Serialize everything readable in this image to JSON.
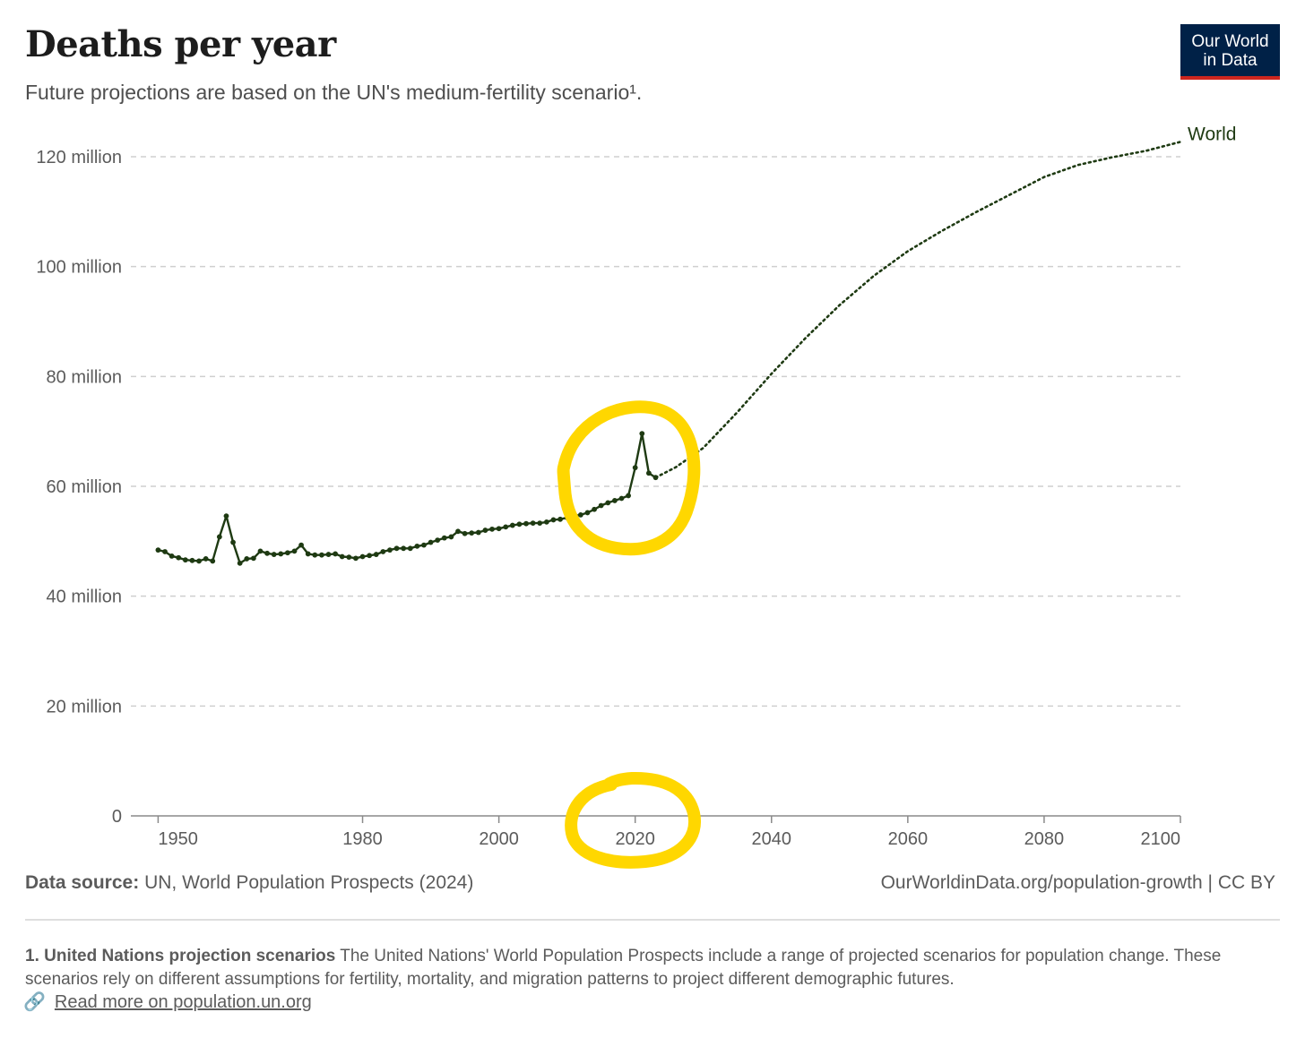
{
  "header": {
    "title": "Deaths per year",
    "subtitle": "Future projections are based on the UN's medium-fertility scenario¹.",
    "logo_line1": "Our World",
    "logo_line2": "in Data"
  },
  "chart_data": {
    "type": "line",
    "title": "Deaths per year",
    "xlabel": "",
    "ylabel": "",
    "xlim": [
      1946,
      2100
    ],
    "ylim": [
      0,
      120000000
    ],
    "x_ticks": [
      1950,
      1980,
      2000,
      2020,
      2040,
      2060,
      2080,
      2100
    ],
    "y_ticks": [
      0,
      20000000,
      40000000,
      60000000,
      80000000,
      100000000,
      120000000
    ],
    "y_tick_labels": [
      "0",
      "20 million",
      "40 million",
      "60 million",
      "80 million",
      "100 million",
      "120 million"
    ],
    "grid": "horizontal dashed",
    "series": [
      {
        "name": "World",
        "style": "solid-with-markers",
        "x": [
          1950,
          1951,
          1952,
          1953,
          1954,
          1955,
          1956,
          1957,
          1958,
          1959,
          1960,
          1961,
          1962,
          1963,
          1964,
          1965,
          1966,
          1967,
          1968,
          1969,
          1970,
          1971,
          1972,
          1973,
          1974,
          1975,
          1976,
          1977,
          1978,
          1979,
          1980,
          1981,
          1982,
          1983,
          1984,
          1985,
          1986,
          1987,
          1988,
          1989,
          1990,
          1991,
          1992,
          1993,
          1994,
          1995,
          1996,
          1997,
          1998,
          1999,
          2000,
          2001,
          2002,
          2003,
          2004,
          2005,
          2006,
          2007,
          2008,
          2009,
          2010,
          2011,
          2012,
          2013,
          2014,
          2015,
          2016,
          2017,
          2018,
          2019,
          2020,
          2021,
          2022,
          2023
        ],
        "values": [
          48.4,
          48.1,
          47.3,
          47.0,
          46.6,
          46.5,
          46.4,
          46.8,
          46.4,
          50.8,
          54.6,
          49.8,
          46.0,
          46.8,
          46.9,
          48.2,
          47.8,
          47.6,
          47.7,
          47.9,
          48.2,
          49.3,
          47.7,
          47.5,
          47.5,
          47.6,
          47.7,
          47.2,
          47.1,
          46.9,
          47.2,
          47.4,
          47.6,
          48.1,
          48.4,
          48.7,
          48.7,
          48.7,
          49.1,
          49.3,
          49.8,
          50.2,
          50.6,
          50.8,
          51.8,
          51.4,
          51.5,
          51.6,
          52.0,
          52.2,
          52.3,
          52.6,
          52.9,
          53.1,
          53.2,
          53.3,
          53.3,
          53.5,
          53.9,
          54.0,
          54.3,
          54.6,
          54.8,
          55.2,
          55.8,
          56.5,
          57.0,
          57.4,
          57.8,
          58.3,
          63.4,
          69.6,
          62.4,
          61.6
        ]
      },
      {
        "name": "World",
        "style": "dotted-projection",
        "x": [
          2023,
          2026,
          2030,
          2035,
          2040,
          2045,
          2050,
          2055,
          2060,
          2065,
          2070,
          2075,
          2080,
          2085,
          2090,
          2095,
          2100
        ],
        "values": [
          61.6,
          63.5,
          67.0,
          73.5,
          80.5,
          87.0,
          93.0,
          98.3,
          102.8,
          106.5,
          109.9,
          113.1,
          116.3,
          118.5,
          119.9,
          121.1,
          122.7
        ]
      }
    ],
    "values_unit": "million deaths",
    "legend": "inline label at end of line",
    "annotations": [
      "hand-drawn yellow circle around 2019-2023 peak",
      "hand-drawn yellow circle around 2020 axis label"
    ]
  },
  "colors": {
    "series": "#1e3a12",
    "highlight": "#ffd700",
    "logo_bg": "#002147",
    "logo_accent": "#ce261e",
    "grid": "#cfcfcf"
  },
  "footer": {
    "source_label": "Data source:",
    "source_text": "UN, World Population Prospects (2024)",
    "credit": "OurWorldinData.org/population-growth | CC BY"
  },
  "footnote": {
    "heading": "1. United Nations projection scenarios",
    "body": "The United Nations' World Population Prospects include a range of projected scenarios for population change. These scenarios rely on different assumptions for fertility, mortality, and migration patterns to project different demographic futures.",
    "link_icon": "link-icon",
    "link_text": "Read more on population.un.org"
  }
}
